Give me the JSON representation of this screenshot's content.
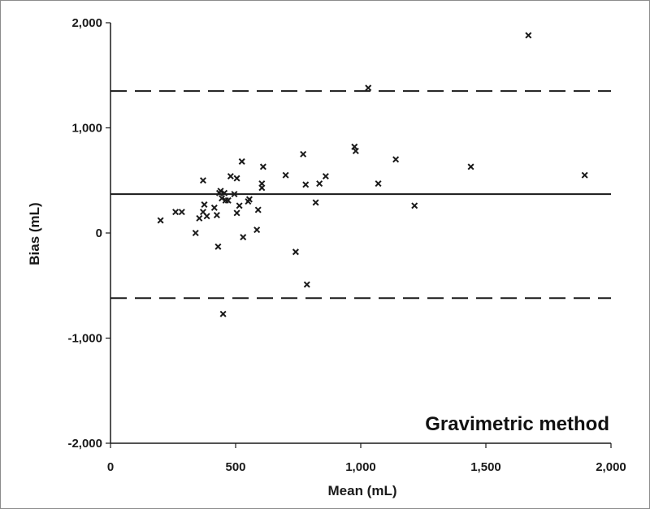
{
  "chart_data": {
    "type": "scatter",
    "title": "",
    "annotation": "Gravimetric method",
    "xlabel": "Mean (mL)",
    "ylabel": "Bias (mL)",
    "xlim": [
      0,
      2000
    ],
    "ylim": [
      -2000,
      2000
    ],
    "xticks": [
      0,
      500,
      1000,
      1500,
      2000
    ],
    "xtick_labels": [
      "0",
      "500",
      "1,000",
      "1,500",
      "2,000"
    ],
    "yticks": [
      -2000,
      -1000,
      0,
      1000,
      2000
    ],
    "ytick_labels": [
      "-2,000",
      "-1,000",
      "0",
      "1,000",
      "2,000"
    ],
    "grid": false,
    "legend": "none",
    "marker": "x",
    "colors": {
      "marker": "#1a1a1a",
      "lines": "#1a1a1a",
      "frame": "#8c8c8c"
    },
    "reference_lines": [
      {
        "kind": "mean-bias",
        "style": "solid",
        "y": 370
      },
      {
        "kind": "upper-limit-of-agreement",
        "style": "dashed",
        "y": 1350
      },
      {
        "kind": "lower-limit-of-agreement",
        "style": "dashed",
        "y": -620
      }
    ],
    "points": [
      {
        "x": 200,
        "y": 120
      },
      {
        "x": 260,
        "y": 200
      },
      {
        "x": 285,
        "y": 200
      },
      {
        "x": 340,
        "y": 0
      },
      {
        "x": 355,
        "y": 140
      },
      {
        "x": 370,
        "y": 500
      },
      {
        "x": 370,
        "y": 200
      },
      {
        "x": 375,
        "y": 270
      },
      {
        "x": 385,
        "y": 160
      },
      {
        "x": 415,
        "y": 240
      },
      {
        "x": 425,
        "y": 170
      },
      {
        "x": 430,
        "y": -130
      },
      {
        "x": 435,
        "y": 380
      },
      {
        "x": 440,
        "y": 400
      },
      {
        "x": 445,
        "y": 330
      },
      {
        "x": 450,
        "y": -770
      },
      {
        "x": 455,
        "y": 380
      },
      {
        "x": 460,
        "y": 310
      },
      {
        "x": 470,
        "y": 310
      },
      {
        "x": 480,
        "y": 540
      },
      {
        "x": 495,
        "y": 370
      },
      {
        "x": 505,
        "y": 520
      },
      {
        "x": 505,
        "y": 190
      },
      {
        "x": 515,
        "y": 260
      },
      {
        "x": 525,
        "y": 680
      },
      {
        "x": 530,
        "y": -40
      },
      {
        "x": 550,
        "y": 300
      },
      {
        "x": 555,
        "y": 320
      },
      {
        "x": 585,
        "y": 30
      },
      {
        "x": 590,
        "y": 220
      },
      {
        "x": 605,
        "y": 470
      },
      {
        "x": 605,
        "y": 430
      },
      {
        "x": 610,
        "y": 630
      },
      {
        "x": 700,
        "y": 550
      },
      {
        "x": 740,
        "y": -180
      },
      {
        "x": 770,
        "y": 750
      },
      {
        "x": 780,
        "y": 460
      },
      {
        "x": 785,
        "y": -490
      },
      {
        "x": 820,
        "y": 290
      },
      {
        "x": 835,
        "y": 470
      },
      {
        "x": 860,
        "y": 540
      },
      {
        "x": 975,
        "y": 820
      },
      {
        "x": 980,
        "y": 780
      },
      {
        "x": 1030,
        "y": 1380
      },
      {
        "x": 1070,
        "y": 470
      },
      {
        "x": 1140,
        "y": 700
      },
      {
        "x": 1215,
        "y": 260
      },
      {
        "x": 1440,
        "y": 630
      },
      {
        "x": 1670,
        "y": 1880
      },
      {
        "x": 1895,
        "y": 550
      }
    ]
  }
}
